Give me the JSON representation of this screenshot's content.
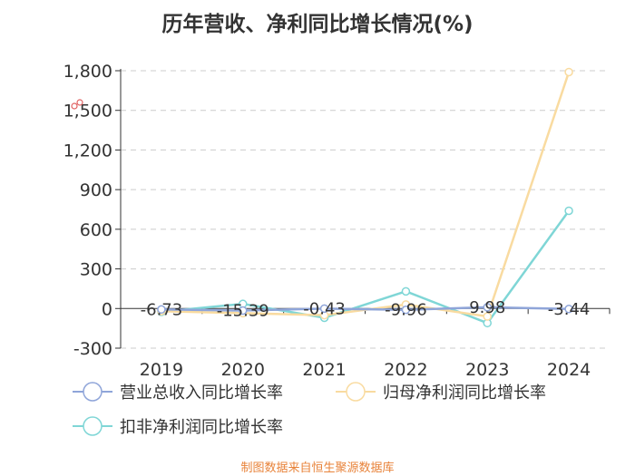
{
  "title": "历年营收、净利同比增长情况(%)",
  "source": "制图数据来自恒生聚源数据库",
  "chart_data": {
    "type": "line",
    "categories": [
      "2019",
      "2020",
      "2021",
      "2022",
      "2023",
      "2024"
    ],
    "ylim": [
      -300,
      1800
    ],
    "yticks": [
      -300,
      0,
      300,
      600,
      900,
      1200,
      1500,
      1800
    ],
    "ytick_labels": [
      "-300",
      "0",
      "300",
      "600",
      "900",
      "1,200",
      "1,500",
      "1,800"
    ],
    "grid": true,
    "legend_position": "bottom",
    "series": [
      {
        "name": "营业总收入同比增长率",
        "color": "#8fa5d9",
        "values": [
          -6.73,
          -15.39,
          -0.43,
          -9.96,
          9.98,
          -3.44
        ],
        "labels": [
          "-6.73",
          "-15.39",
          "-0.43",
          "-9.96",
          "9.98",
          "-3.44"
        ]
      },
      {
        "name": "归母净利润同比增长率",
        "color": "#f9dba0",
        "values": [
          -20,
          -35,
          -50,
          30,
          -60,
          1790
        ]
      },
      {
        "name": "扣非净利润同比增长率",
        "color": "#7fd6d6",
        "values": [
          -25,
          35,
          -70,
          130,
          -110,
          740
        ]
      }
    ]
  }
}
